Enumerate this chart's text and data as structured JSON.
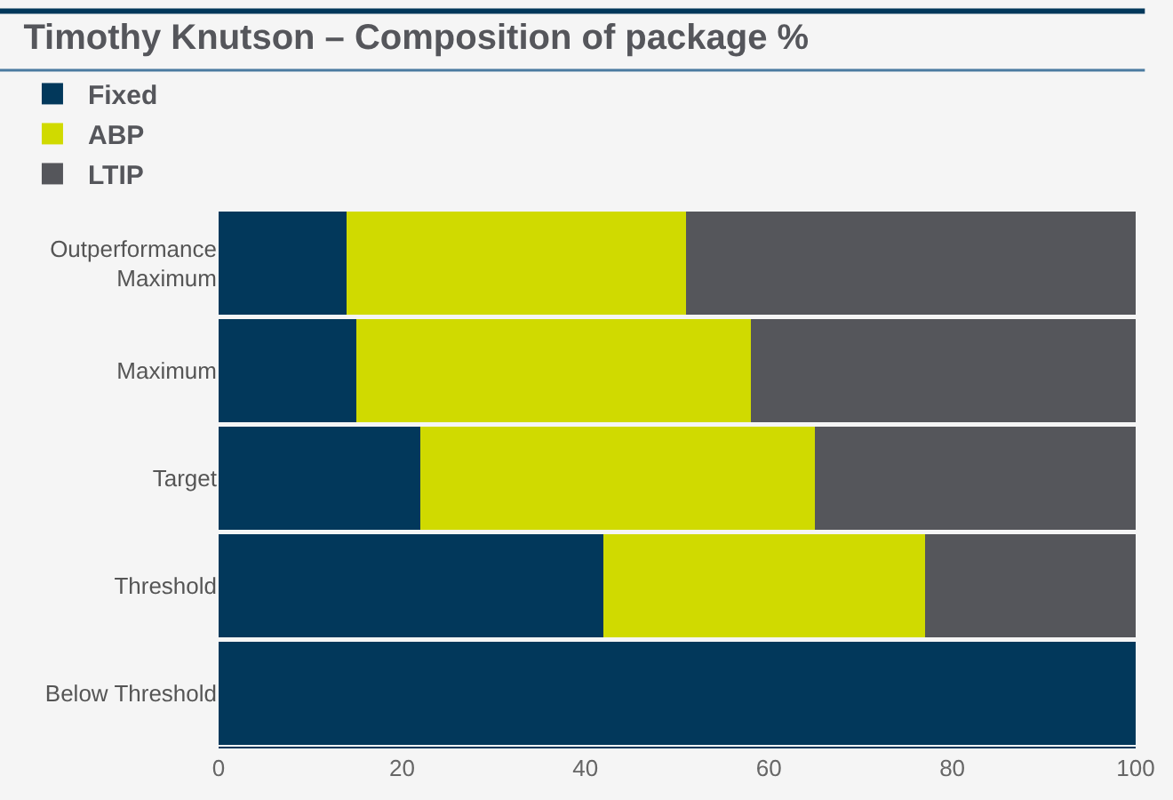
{
  "chart_data": {
    "type": "bar",
    "orientation": "horizontal",
    "stacked": true,
    "title": "Timothy Knutson – Composition of package %",
    "categories": [
      "Outperformance Maximum",
      "Maximum",
      "Target",
      "Threshold",
      "Below Threshold"
    ],
    "series": [
      {
        "name": "Fixed",
        "color": "#02385b",
        "values": [
          14,
          15,
          22,
          42,
          100
        ]
      },
      {
        "name": "ABP",
        "color": "#d0da00",
        "values": [
          37,
          43,
          43,
          35,
          null
        ]
      },
      {
        "name": "LTIP",
        "color": "#55565b",
        "values": [
          49,
          42,
          35,
          23,
          null
        ]
      }
    ],
    "xlim": [
      0,
      100
    ],
    "xticks": [
      0,
      20,
      40,
      60,
      80,
      100
    ],
    "grid": false,
    "legend": "top left"
  }
}
